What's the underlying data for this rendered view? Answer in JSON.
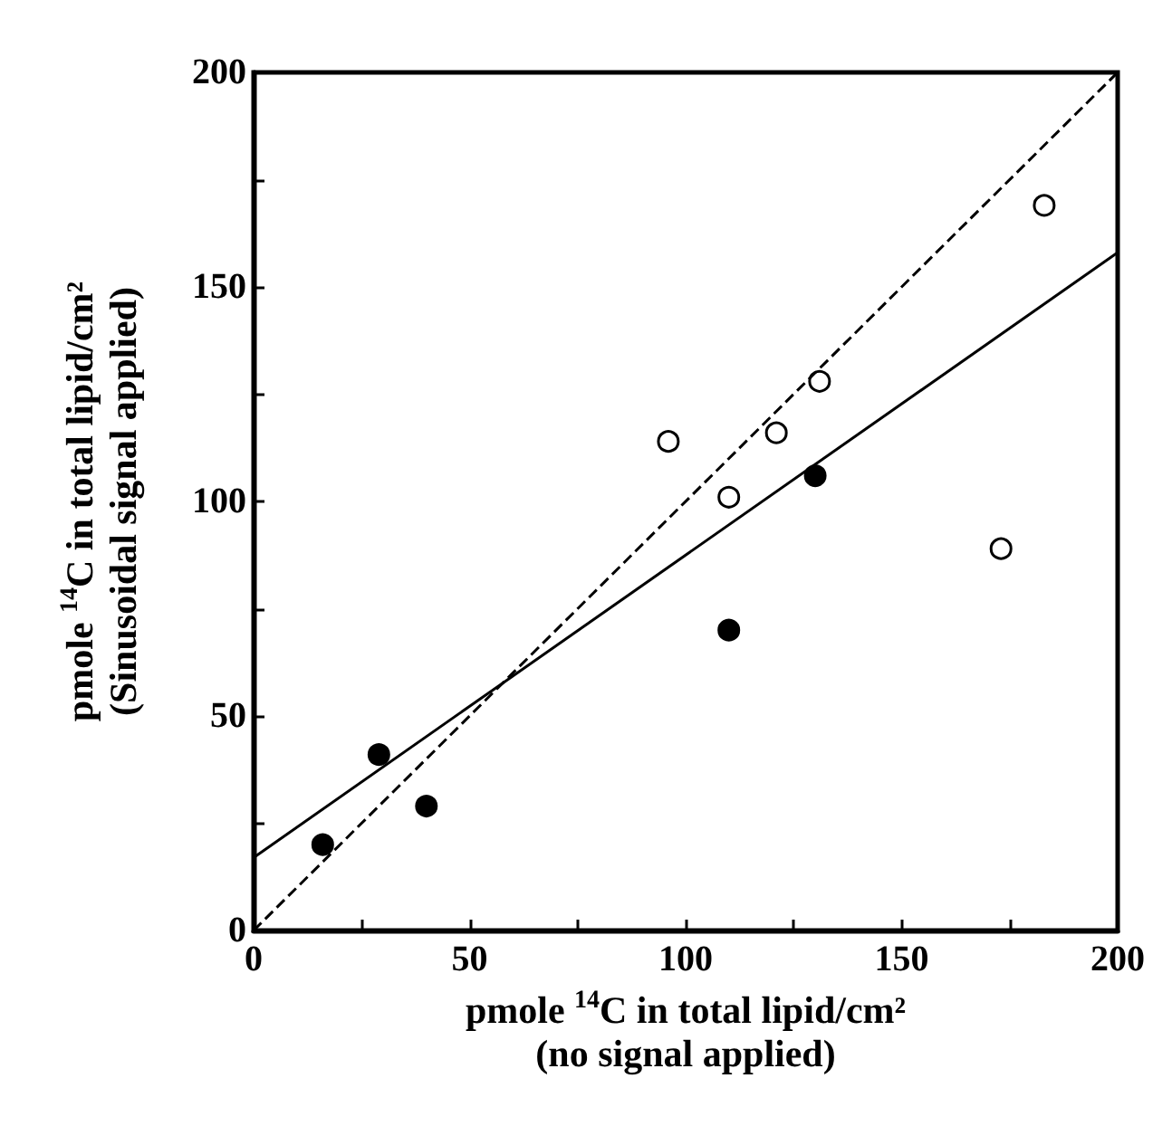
{
  "chart_data": {
    "type": "scatter",
    "xlabel": "pmole $^{14}$C in total lipid/cm²\n(no signal applied)",
    "ylabel": "pmole $^{14}$C in total lipid/cm²\n(Sinusoidal signal applied)",
    "xlim": [
      0,
      200
    ],
    "ylim": [
      0,
      200
    ],
    "xticks": [
      0,
      {
        "value": 25,
        "label": null
      },
      50,
      {
        "value": 75,
        "label": null
      },
      100,
      {
        "value": 125,
        "label": null
      },
      150,
      {
        "value": 175,
        "label": null
      },
      200
    ],
    "yticks": [
      0,
      {
        "value": 25,
        "label": null
      },
      50,
      {
        "value": 75,
        "label": null
      },
      100,
      {
        "value": 125,
        "label": null
      },
      150,
      {
        "value": 175,
        "label": null
      },
      200
    ],
    "grid": false,
    "marker": "circle",
    "series": [
      {
        "color": "#000000",
        "x": [
          16,
          29,
          40,
          110,
          130
        ],
        "values": [
          20,
          41,
          29,
          70,
          106
        ]
      },
      {
        "color": "#ffffff",
        "x": [
          96,
          110,
          121,
          131,
          173,
          183
        ],
        "values": [
          114,
          101,
          116,
          128,
          89,
          169
        ]
      },
      {
        "type": "line",
        "color": "#000000",
        "marker": "none",
        "line_style": "solid",
        "x": [
          0,
          200
        ],
        "values": [
          17,
          158
        ]
      },
      {
        "type": "line",
        "color": "#000000",
        "marker": "none",
        "line_style": "dashed",
        "x": [
          0,
          200
        ],
        "values": [
          0,
          200
        ]
      }
    ]
  }
}
